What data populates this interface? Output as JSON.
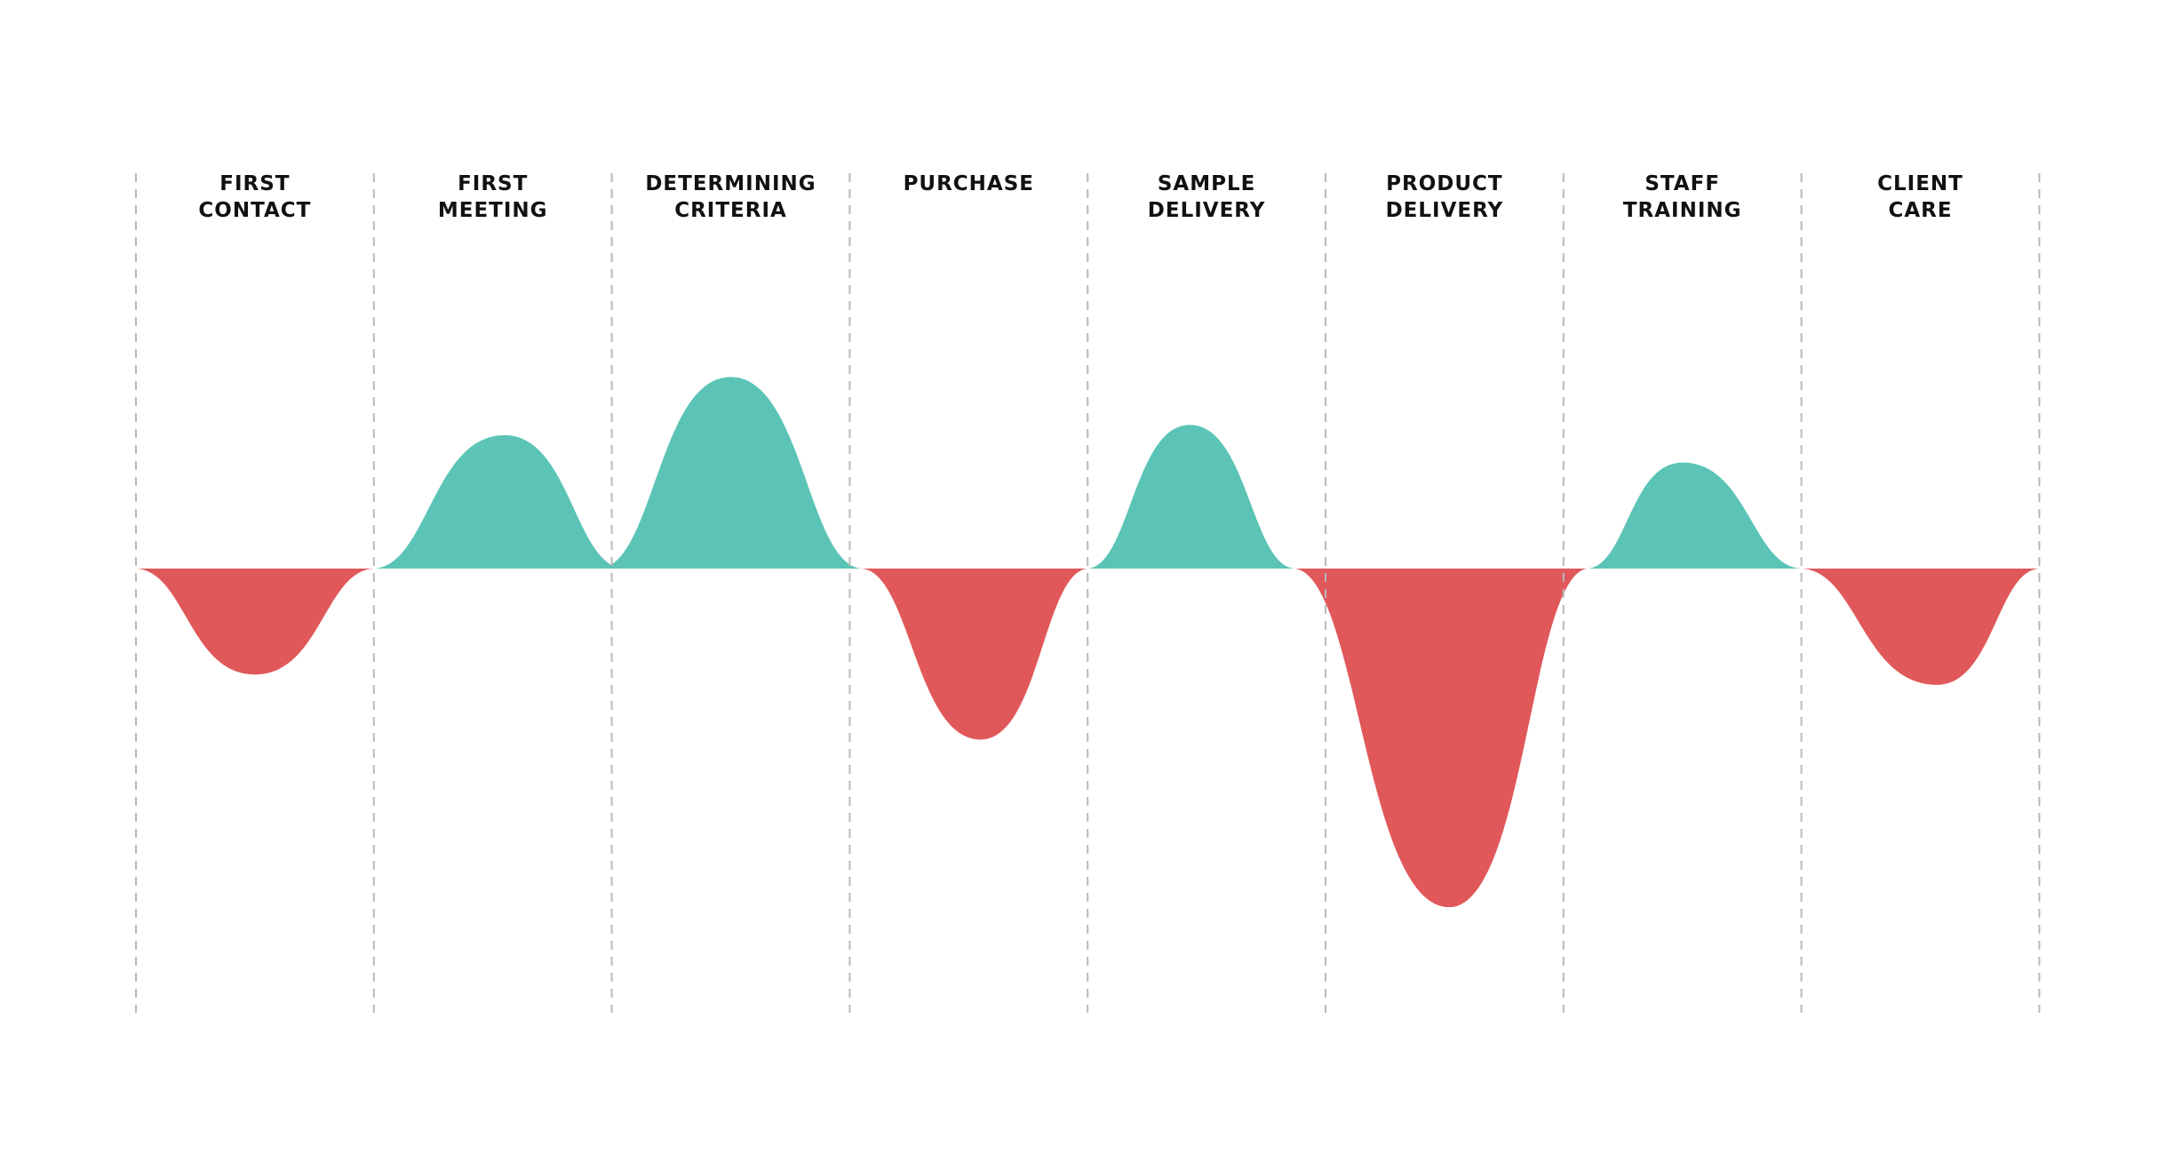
{
  "chart_data": {
    "type": "area",
    "title": "",
    "xlabel": "",
    "ylabel": "",
    "grid": false,
    "ylim": [
      -1,
      1
    ],
    "colors": {
      "positive": "#5bc4b6",
      "negative": "#e0585a",
      "divider": "#b9b9b9",
      "label": "#111111"
    },
    "stages": [
      {
        "id": "first-contact",
        "lines": [
          "FIRST",
          "CONTACT"
        ]
      },
      {
        "id": "first-meeting",
        "lines": [
          "FIRST",
          "MEETING"
        ]
      },
      {
        "id": "determining-criteria",
        "lines": [
          "DETERMINING",
          "CRITERIA"
        ]
      },
      {
        "id": "purchase",
        "lines": [
          "PURCHASE"
        ]
      },
      {
        "id": "sample-delivery",
        "lines": [
          "SAMPLE",
          "DELIVERY"
        ]
      },
      {
        "id": "product-delivery",
        "lines": [
          "PRODUCT",
          "DELIVERY"
        ]
      },
      {
        "id": "staff-training",
        "lines": [
          "STAFF",
          "TRAINING"
        ]
      },
      {
        "id": "client-care",
        "lines": [
          "CLIENT",
          "CARE"
        ]
      }
    ],
    "series": [
      {
        "name": "first-contact",
        "sentiment": "negative",
        "x_start": 0.0,
        "x_end": 1.0,
        "peak_x": 0.5,
        "peak_y": -0.31
      },
      {
        "name": "first-meeting",
        "sentiment": "positive",
        "x_start": 1.0,
        "x_end": 2.05,
        "peak_x": 1.55,
        "peak_y": 0.39
      },
      {
        "name": "determining-criteria",
        "sentiment": "positive",
        "x_start": 1.95,
        "x_end": 3.05,
        "peak_x": 2.5,
        "peak_y": 0.56
      },
      {
        "name": "purchase",
        "sentiment": "negative",
        "x_start": 3.05,
        "x_end": 4.0,
        "peak_x": 3.55,
        "peak_y": -0.5
      },
      {
        "name": "sample-delivery",
        "sentiment": "positive",
        "x_start": 4.0,
        "x_end": 4.87,
        "peak_x": 4.43,
        "peak_y": 0.42
      },
      {
        "name": "product-delivery",
        "sentiment": "negative",
        "x_start": 4.87,
        "x_end": 6.1,
        "peak_x": 5.52,
        "peak_y": -0.99
      },
      {
        "name": "staff-training",
        "sentiment": "positive",
        "x_start": 6.1,
        "x_end": 7.0,
        "peak_x": 6.5,
        "peak_y": 0.31
      },
      {
        "name": "client-care",
        "sentiment": "negative",
        "x_start": 7.0,
        "x_end": 8.0,
        "peak_x": 7.57,
        "peak_y": -0.34
      }
    ]
  }
}
